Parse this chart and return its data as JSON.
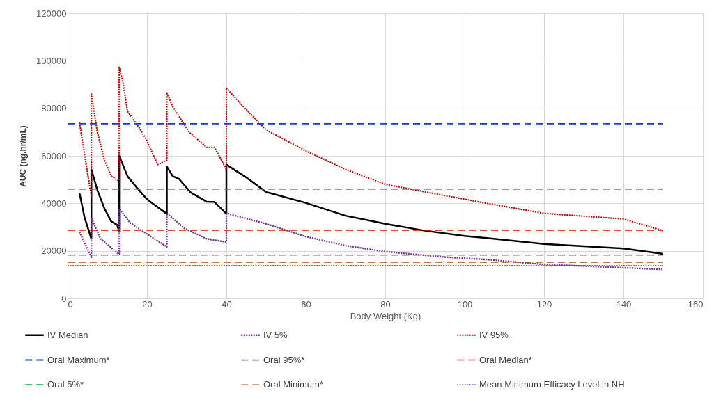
{
  "chart_data": {
    "type": "line",
    "xlabel": "Body Weight (Kg)",
    "ylabel": "AUC (ng.hr/mL)",
    "xlim": [
      0,
      160
    ],
    "ylim": [
      0,
      120000
    ],
    "xticks": [
      0,
      20,
      40,
      60,
      80,
      100,
      120,
      140,
      160
    ],
    "yticks": [
      0,
      20000,
      40000,
      60000,
      80000,
      100000,
      120000
    ],
    "grid": true,
    "legend": "bottom",
    "series": [
      {
        "name": "IV Median",
        "color": "#000000",
        "line_style": "solid",
        "x": [
          3,
          4.3,
          6,
          6,
          7.5,
          9.3,
          11,
          12.5,
          13,
          13,
          15.1,
          17.5,
          19.8,
          21.6,
          25,
          25,
          26.5,
          28,
          31,
          35,
          37,
          40,
          40,
          45,
          50,
          60,
          70,
          80,
          90,
          100,
          106,
          120,
          140,
          150
        ],
        "values": [
          44400,
          33900,
          25100,
          54300,
          45600,
          37800,
          32400,
          30900,
          28000,
          60000,
          51400,
          46500,
          42100,
          39700,
          35600,
          55500,
          51400,
          50400,
          44600,
          40700,
          40600,
          35600,
          56300,
          50900,
          44800,
          40200,
          34800,
          31400,
          28500,
          26300,
          25300,
          22900,
          21000,
          18700
        ]
      },
      {
        "name": "IV 5%",
        "color": "#7030a0",
        "line_style": "dotted",
        "x": [
          3,
          6,
          6,
          8.3,
          10.4,
          12.8,
          13,
          13,
          15.7,
          19.2,
          25,
          25,
          29.4,
          35,
          40,
          40,
          50,
          60,
          70,
          80,
          94,
          106,
          120,
          140,
          150
        ],
        "values": [
          28000,
          17300,
          33900,
          25100,
          22200,
          18700,
          18700,
          37800,
          31900,
          28000,
          21700,
          35800,
          29500,
          25100,
          23700,
          35800,
          31400,
          26000,
          22200,
          19700,
          17500,
          16300,
          14300,
          12900,
          12200
        ]
      },
      {
        "name": "IV 95%",
        "color": "#c00000",
        "line_style": "dotted",
        "x": [
          3,
          6,
          6,
          7.5,
          9.3,
          11,
          12.8,
          13,
          13,
          14,
          15.1,
          18,
          19.8,
          22.7,
          25,
          25,
          26.5,
          30.6,
          35,
          37,
          40,
          40,
          44,
          50,
          60,
          70,
          80,
          94,
          106,
          120,
          140,
          150
        ],
        "values": [
          74000,
          42700,
          86000,
          70000,
          58200,
          51500,
          49500,
          49500,
          97300,
          90400,
          78700,
          71900,
          67000,
          56300,
          58200,
          86500,
          80700,
          70000,
          63600,
          63600,
          54300,
          88500,
          81200,
          70900,
          62100,
          54300,
          48000,
          43600,
          39900,
          35800,
          33400,
          28500
        ]
      },
      {
        "name": "Oral Maximum*",
        "color": "#1a35e8",
        "line_style": "dashed",
        "x": [
          0,
          150
        ],
        "values": [
          73500,
          73500
        ]
      },
      {
        "name": "Oral 95%*",
        "color": "#7f7f7f",
        "line_style": "dashed",
        "x": [
          0,
          150
        ],
        "values": [
          46000,
          46000
        ]
      },
      {
        "name": "Oral Median*",
        "color": "#ff0000",
        "line_style": "dashed",
        "x": [
          0,
          150
        ],
        "values": [
          28700,
          28700
        ]
      },
      {
        "name": "Oral  5%*",
        "color": "#00b050",
        "line_style": "dashed",
        "x": [
          0,
          150
        ],
        "values": [
          18200,
          18200
        ]
      },
      {
        "name": "Oral Minimum*",
        "color": "#a0501a",
        "line_style": "dashed",
        "x": [
          0,
          150
        ],
        "values": [
          15200,
          15200
        ]
      },
      {
        "name": "Mean Minimum Efficacy Level in  NH",
        "color": "#0020ff",
        "line_style": "dotted",
        "x": [
          0,
          150
        ],
        "values": [
          13800,
          13800
        ]
      }
    ]
  }
}
